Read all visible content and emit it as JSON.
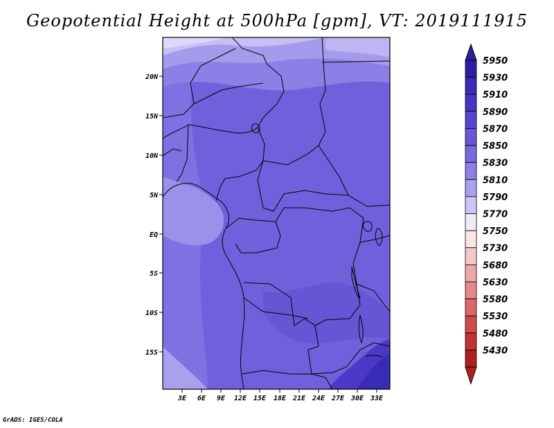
{
  "title": "Geopotential Height at 500hPa [gpm], VT: 2019111915",
  "footer": "GrADS: IGES/COLA",
  "map": {
    "lon_range": [
      0,
      35
    ],
    "lat_range": [
      -20,
      25
    ],
    "lon_ticks": [
      "3E",
      "6E",
      "9E",
      "12E",
      "15E",
      "18E",
      "21E",
      "24E",
      "27E",
      "30E",
      "33E"
    ],
    "lat_ticks": [
      "20N",
      "15N",
      "10N",
      "5N",
      "EQ",
      "5S",
      "10S",
      "15S"
    ]
  },
  "colorbar": {
    "levels": [
      "5950",
      "5930",
      "5910",
      "5890",
      "5870",
      "5850",
      "5830",
      "5810",
      "5790",
      "5770",
      "5750",
      "5730",
      "5680",
      "5630",
      "5580",
      "5530",
      "5480",
      "5430"
    ],
    "colors": [
      "#2c1fa0",
      "#3a2bb4",
      "#4536c4",
      "#5645cf",
      "#6757d8",
      "#7868e0",
      "#8c7fe6",
      "#a9a0ee",
      "#cbc6f5",
      "#ececfb",
      "#fbe6e6",
      "#f6c8c8",
      "#efa8a8",
      "#e68888",
      "#dc6868",
      "#d04a4a",
      "#c23232",
      "#b01f1f"
    ]
  }
}
